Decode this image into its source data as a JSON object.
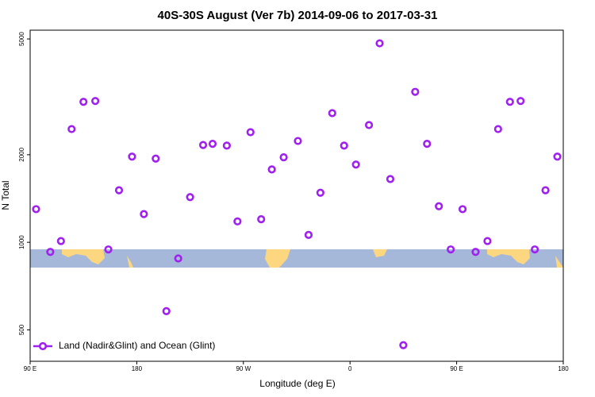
{
  "chart_data": {
    "type": "scatter",
    "title": "40S-30S August (Ver 7b)   2014-09-06 to 2017-03-31",
    "x_label": "Longitude (deg E)",
    "y_label": "N Total",
    "log_y": true,
    "xlim": [
      -270,
      180
    ],
    "xticks": [
      {
        "value": -270,
        "label": "90 E"
      },
      {
        "value": -180,
        "label": "180"
      },
      {
        "value": -90,
        "label": "90 W"
      },
      0,
      {
        "value": 90,
        "label": "90 E"
      },
      180
    ],
    "ylim": [
      390,
      5360
    ],
    "yticks": [
      500,
      1000,
      2000,
      5000
    ],
    "legend": "bottom-left",
    "series": [
      {
        "name": "Land (Nadir&Glint) and Ocean (Glint)",
        "color": "#a020f0",
        "x": [
          -265,
          -253,
          -244,
          -235,
          -225,
          -215,
          -204,
          -195,
          -184,
          -174,
          -164,
          -155,
          -145,
          -135,
          -124,
          -116,
          -104,
          -95,
          -84,
          -75,
          -66,
          -56,
          -44,
          -35,
          -25,
          -15,
          -5,
          5,
          16,
          25,
          34,
          45,
          55,
          65,
          75,
          85,
          95,
          106,
          116,
          125,
          135,
          144,
          156,
          165,
          175
        ],
        "values": [
          1300,
          927,
          1010,
          2450,
          3040,
          3060,
          945,
          1510,
          1970,
          1250,
          1940,
          580,
          880,
          1430,
          2160,
          2180,
          2150,
          1180,
          2390,
          1200,
          1780,
          1960,
          2230,
          1060,
          1480,
          2780,
          2150,
          1850,
          2530,
          4830,
          1650,
          443,
          3290,
          2180,
          1330,
          945,
          1300,
          927,
          1010,
          2450,
          3040,
          3060,
          945,
          1510,
          1970
        ]
      }
    ]
  }
}
